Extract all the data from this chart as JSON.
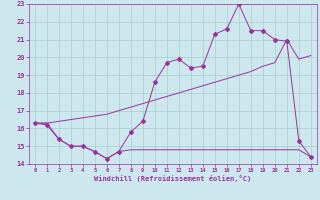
{
  "xlabel": "Windchill (Refroidissement éolien,°C)",
  "bg_color": "#cce8ee",
  "grid_color": "#aacccc",
  "line_color": "#993399",
  "xlim": [
    -0.5,
    23.5
  ],
  "ylim": [
    14,
    23
  ],
  "xticks": [
    0,
    1,
    2,
    3,
    4,
    5,
    6,
    7,
    8,
    9,
    10,
    11,
    12,
    13,
    14,
    15,
    16,
    17,
    18,
    19,
    20,
    21,
    22,
    23
  ],
  "yticks": [
    14,
    15,
    16,
    17,
    18,
    19,
    20,
    21,
    22,
    23
  ],
  "series_up_x": [
    0,
    1,
    2,
    3,
    4,
    5,
    6,
    7,
    8,
    9,
    10,
    11,
    12,
    13,
    14,
    15,
    16,
    17,
    18,
    19,
    20,
    21,
    22,
    23
  ],
  "series_up_y": [
    16.3,
    16.2,
    15.4,
    15.0,
    15.0,
    14.7,
    14.3,
    14.7,
    15.8,
    16.4,
    18.6,
    19.7,
    19.9,
    19.4,
    19.5,
    21.3,
    21.6,
    23.0,
    21.5,
    21.5,
    21.0,
    20.9,
    15.3,
    14.4
  ],
  "series_mid_x": [
    0,
    1,
    2,
    3,
    4,
    5,
    6,
    7,
    8,
    9,
    10,
    11,
    12,
    13,
    14,
    15,
    16,
    17,
    18,
    19,
    20,
    21,
    22,
    23
  ],
  "series_mid_y": [
    16.3,
    16.3,
    16.4,
    16.5,
    16.6,
    16.7,
    16.8,
    17.0,
    17.2,
    17.4,
    17.6,
    17.8,
    18.0,
    18.2,
    18.4,
    18.6,
    18.8,
    19.0,
    19.2,
    19.5,
    19.7,
    21.0,
    19.9,
    20.1
  ],
  "series_bot_x": [
    0,
    1,
    2,
    3,
    4,
    5,
    6,
    7,
    8,
    9,
    10,
    11,
    12,
    13,
    14,
    15,
    16,
    17,
    18,
    19,
    20,
    21,
    22,
    23
  ],
  "series_bot_y": [
    16.3,
    16.3,
    15.4,
    15.0,
    15.0,
    14.7,
    14.3,
    14.7,
    14.8,
    14.8,
    14.8,
    14.8,
    14.8,
    14.8,
    14.8,
    14.8,
    14.8,
    14.8,
    14.8,
    14.8,
    14.8,
    14.8,
    14.8,
    14.4
  ]
}
